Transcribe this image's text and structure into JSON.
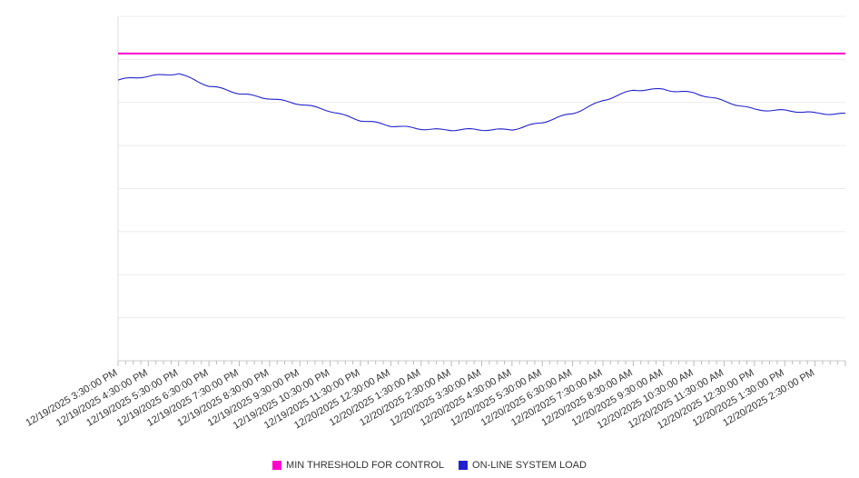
{
  "page": {
    "background": "#ffffff"
  },
  "chart_data": {
    "type": "line",
    "title": "",
    "xlabel": "",
    "ylabel": "",
    "ylim": [
      0,
      100
    ],
    "grid": "horizontal",
    "legend_position": "bottom",
    "categories": [
      "12/19/2025 3:30:00 PM",
      "12/19/2025 4:30:00 PM",
      "12/19/2025 5:30:00 PM",
      "12/19/2025 6:30:00 PM",
      "12/19/2025 7:30:00 PM",
      "12/19/2025 8:30:00 PM",
      "12/19/2025 9:30:00 PM",
      "12/19/2025 10:30:00 PM",
      "12/19/2025 11:30:00 PM",
      "12/20/2025 12:30:00 AM",
      "12/20/2025 1:30:00 AM",
      "12/20/2025 2:30:00 AM",
      "12/20/2025 3:30:00 AM",
      "12/20/2025 4:30:00 AM",
      "12/20/2025 5:30:00 AM",
      "12/20/2025 6:30:00 AM",
      "12/20/2025 7:30:00 AM",
      "12/20/2025 8:30:00 AM",
      "12/20/2025 9:30:00 AM",
      "12/20/2025 10:30:00 AM",
      "12/20/2025 11:30:00 AM",
      "12/20/2025 12:30:00 PM",
      "12/20/2025 1:30:00 PM",
      "12/20/2025 2:30:00 PM"
    ],
    "series": [
      {
        "name": "MIN THRESHOLD FOR CONTROL",
        "type": "constant-line",
        "color": "#ff00cc",
        "value": 89.2
      },
      {
        "name": "ON-LINE SYSTEM LOAD",
        "type": "line",
        "color": "#2222cc",
        "values": [
          81.5,
          82.5,
          83.6,
          79.7,
          77.6,
          76.3,
          74.4,
          72.6,
          69.9,
          68.1,
          67.5,
          67.0,
          67.0,
          67.3,
          69.1,
          71.8,
          75.7,
          78.4,
          78.9,
          77.8,
          75.2,
          73.1,
          72.6,
          71.8
        ]
      }
    ]
  },
  "legend": {
    "items": [
      {
        "label": "MIN THRESHOLD FOR CONTROL",
        "color": "#ff00cc"
      },
      {
        "label": "ON-LINE SYSTEM LOAD",
        "color": "#2222cc"
      }
    ]
  }
}
